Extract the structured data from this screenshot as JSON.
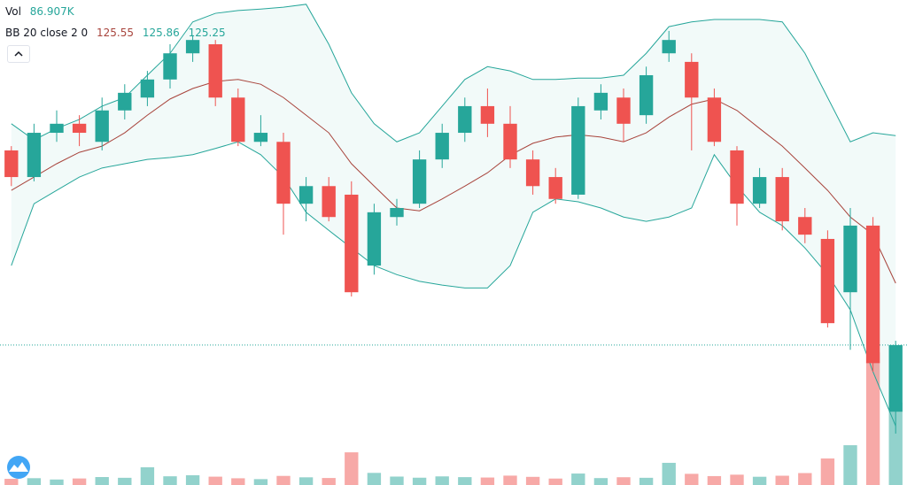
{
  "chart_data": {
    "type": "candlestick",
    "ylim": [
      125.126,
      126.145
    ],
    "up_color": "#26a69a",
    "down_color": "#ef5350",
    "candles": {
      "open": [
        125.829,
        125.773,
        125.866,
        125.885,
        125.847,
        125.913,
        125.94,
        125.978,
        126.033,
        126.052,
        125.94,
        125.847,
        125.847,
        125.717,
        125.754,
        125.736,
        125.587,
        125.689,
        125.717,
        125.81,
        125.866,
        125.922,
        125.885,
        125.81,
        125.773,
        125.736,
        125.913,
        125.94,
        125.903,
        126.033,
        126.015,
        125.94,
        125.829,
        125.717,
        125.773,
        125.689,
        125.643,
        125.531,
        125.671,
        125.28
      ],
      "high": [
        125.838,
        125.885,
        125.913,
        125.903,
        125.94,
        125.968,
        125.996,
        126.052,
        126.071,
        126.061,
        125.959,
        125.903,
        125.866,
        125.773,
        125.773,
        125.764,
        125.717,
        125.727,
        125.829,
        125.885,
        125.94,
        125.959,
        125.922,
        125.829,
        125.792,
        125.94,
        125.968,
        125.959,
        126.005,
        126.08,
        126.033,
        125.959,
        125.838,
        125.792,
        125.792,
        125.708,
        125.661,
        125.708,
        125.689,
        125.429
      ],
      "low": [
        125.754,
        125.764,
        125.847,
        125.838,
        125.829,
        125.894,
        125.922,
        125.959,
        126.015,
        125.922,
        125.838,
        125.838,
        125.652,
        125.68,
        125.68,
        125.522,
        125.568,
        125.671,
        125.708,
        125.792,
        125.847,
        125.857,
        125.792,
        125.736,
        125.717,
        125.727,
        125.894,
        125.847,
        125.885,
        126.015,
        125.829,
        125.838,
        125.671,
        125.708,
        125.661,
        125.634,
        125.457,
        125.41,
        125.364,
        125.234
      ],
      "close": [
        125.773,
        125.866,
        125.885,
        125.866,
        125.913,
        125.95,
        125.978,
        126.033,
        126.061,
        125.94,
        125.847,
        125.866,
        125.717,
        125.754,
        125.689,
        125.531,
        125.699,
        125.708,
        125.81,
        125.866,
        125.922,
        125.885,
        125.81,
        125.754,
        125.727,
        125.922,
        125.95,
        125.885,
        125.987,
        126.061,
        125.94,
        125.847,
        125.717,
        125.773,
        125.68,
        125.652,
        125.466,
        125.671,
        125.382,
        125.42
      ]
    },
    "bollinger": {
      "band_color": "#26a69a",
      "fill_color": "rgba(38,166,154,0.06)",
      "upper": {
        "color": "#26a69a",
        "values": [
          125.885,
          125.851,
          125.875,
          125.894,
          125.922,
          125.94,
          125.987,
          126.033,
          126.099,
          126.117,
          126.123,
          126.126,
          126.13,
          126.136,
          126.052,
          125.95,
          125.885,
          125.847,
          125.866,
          125.922,
          125.978,
          126.005,
          125.996,
          125.978,
          125.978,
          125.981,
          125.981,
          125.987,
          126.033,
          126.089,
          126.099,
          126.104,
          126.104,
          126.104,
          126.099,
          126.033,
          125.94,
          125.847,
          125.866,
          125.86
        ]
      },
      "basis": {
        "color": "#a8443c",
        "values": [
          125.745,
          125.773,
          125.801,
          125.825,
          125.838,
          125.866,
          125.903,
          125.937,
          125.959,
          125.974,
          125.978,
          125.968,
          125.94,
          125.903,
          125.866,
          125.801,
          125.754,
          125.708,
          125.702,
          125.727,
          125.754,
          125.782,
          125.819,
          125.844,
          125.857,
          125.862,
          125.857,
          125.847,
          125.866,
          125.899,
          125.926,
          125.937,
          125.913,
          125.875,
          125.838,
          125.792,
          125.745,
          125.689,
          125.652,
          125.55
        ]
      },
      "lower": {
        "color": "#26a69a",
        "values": [
          125.587,
          125.717,
          125.745,
          125.773,
          125.792,
          125.801,
          125.81,
          125.814,
          125.82,
          125.833,
          125.847,
          125.82,
          125.773,
          125.699,
          125.661,
          125.624,
          125.587,
          125.568,
          125.554,
          125.546,
          125.54,
          125.54,
          125.587,
          125.699,
          125.727,
          125.721,
          125.708,
          125.689,
          125.68,
          125.689,
          125.708,
          125.82,
          125.754,
          125.699,
          125.671,
          125.624,
          125.568,
          125.494,
          125.364,
          125.25
        ]
      }
    },
    "volume": {
      "ylim": [
        0,
        200000
      ],
      "values": [
        6500,
        7200,
        5800,
        6900,
        8400,
        7600,
        18700,
        9200,
        10300,
        8800,
        7100,
        6200,
        9600,
        8100,
        7400,
        34500,
        12800,
        8900,
        7700,
        9100,
        8300,
        7900,
        9900,
        8600,
        6800,
        12100,
        7300,
        8200,
        7600,
        23400,
        11800,
        9400,
        10900,
        8700,
        9800,
        12600,
        28000,
        42000,
        140000,
        86907
      ],
      "title": "Vol",
      "last_label": "86.907K"
    },
    "bb_legend": {
      "title": "BB 20 close 2 0",
      "basis": 125.55,
      "upper": 125.86,
      "lower": 125.25
    },
    "last_price_line": true
  }
}
